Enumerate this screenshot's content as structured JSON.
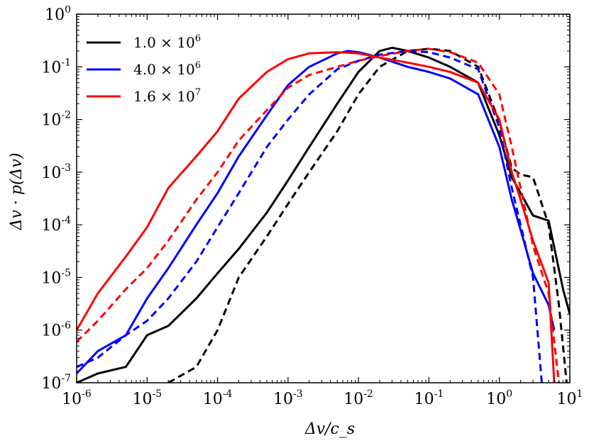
{
  "chart_data": {
    "type": "line",
    "title": "",
    "xlabel": "Δv/c_s",
    "ylabel": "Δv · p(Δv)",
    "xscale": "log",
    "yscale": "log",
    "xlim": [
      1e-06,
      10
    ],
    "ylim": [
      1e-07,
      1
    ],
    "x_ticks": [
      {
        "base": "10",
        "exp": "-6"
      },
      {
        "base": "10",
        "exp": "-5"
      },
      {
        "base": "10",
        "exp": "-4"
      },
      {
        "base": "10",
        "exp": "-3"
      },
      {
        "base": "10",
        "exp": "-2"
      },
      {
        "base": "10",
        "exp": "-1"
      },
      {
        "base": "10",
        "exp": "0"
      },
      {
        "base": "10",
        "exp": "1"
      }
    ],
    "y_ticks": [
      {
        "base": "10",
        "exp": "-7"
      },
      {
        "base": "10",
        "exp": "-6"
      },
      {
        "base": "10",
        "exp": "-5"
      },
      {
        "base": "10",
        "exp": "-4"
      },
      {
        "base": "10",
        "exp": "-3"
      },
      {
        "base": "10",
        "exp": "-2"
      },
      {
        "base": "10",
        "exp": "-1"
      },
      {
        "base": "10",
        "exp": "0"
      }
    ],
    "legend_position": "top-left",
    "grid": false,
    "legend": [
      {
        "mantissa": "1.0 ×",
        "base": "10",
        "exp": "6",
        "color": "#000000"
      },
      {
        "mantissa": "4.0 ×",
        "base": "10",
        "exp": "6",
        "color": "#0000ff"
      },
      {
        "mantissa": "1.6 ×",
        "base": "10",
        "exp": "7",
        "color": "#ff0000"
      }
    ],
    "series": [
      {
        "name": "1.0 × 10^6",
        "color": "#000000",
        "style": "solid",
        "x": [
          1e-06,
          2e-06,
          5e-06,
          1e-05,
          2e-05,
          5e-05,
          0.0001,
          0.0002,
          0.0005,
          0.001,
          0.002,
          0.005,
          0.01,
          0.02,
          0.03,
          0.05,
          0.1,
          0.2,
          0.5,
          1.0,
          1.5,
          2.0,
          3.0,
          5.0,
          8.0,
          10.0
        ],
        "y": [
          1e-07,
          1.5e-07,
          2e-07,
          8e-07,
          1.2e-06,
          4e-06,
          1.2e-05,
          3.5e-05,
          0.00017,
          0.0007,
          0.003,
          0.02,
          0.08,
          0.2,
          0.23,
          0.2,
          0.15,
          0.1,
          0.05,
          0.005,
          0.0008,
          0.0004,
          0.00015,
          0.00012,
          6e-06,
          2e-06
        ]
      },
      {
        "name": "",
        "color": "#000000",
        "style": "dashed",
        "x": [
          2e-05,
          5e-05,
          0.0001,
          0.0002,
          0.0005,
          0.001,
          0.002,
          0.005,
          0.01,
          0.02,
          0.05,
          0.1,
          0.2,
          0.5,
          1.0,
          1.5,
          2.0,
          3.0,
          5.0,
          7.0,
          9.0
        ],
        "y": [
          1e-07,
          2e-07,
          1e-06,
          1e-05,
          6e-05,
          0.00025,
          0.001,
          0.006,
          0.03,
          0.1,
          0.2,
          0.22,
          0.2,
          0.1,
          0.009,
          0.0012,
          0.0009,
          0.0008,
          0.0001,
          3e-06,
          1e-07
        ]
      },
      {
        "name": "4.0 × 10^6",
        "color": "#0000ff",
        "style": "solid",
        "x": [
          1e-06,
          2e-06,
          5e-06,
          1e-05,
          2e-05,
          5e-05,
          0.0001,
          0.0002,
          0.0005,
          0.001,
          0.002,
          0.005,
          0.007,
          0.01,
          0.02,
          0.05,
          0.1,
          0.2,
          0.5,
          1.0,
          1.5,
          2.0,
          3.0,
          5.0,
          6.0
        ],
        "y": [
          1.5e-07,
          4e-07,
          8e-07,
          4e-06,
          1.5e-05,
          0.0001,
          0.0004,
          0.002,
          0.012,
          0.045,
          0.1,
          0.18,
          0.2,
          0.19,
          0.15,
          0.1,
          0.08,
          0.06,
          0.03,
          0.003,
          0.0003,
          8e-05,
          1.2e-05,
          3e-06,
          1e-06
        ]
      },
      {
        "name": "",
        "color": "#0000ff",
        "style": "dashed",
        "x": [
          1e-06,
          2e-06,
          5e-06,
          1e-05,
          2e-05,
          5e-05,
          0.0001,
          0.0002,
          0.0005,
          0.001,
          0.002,
          0.005,
          0.01,
          0.02,
          0.05,
          0.1,
          0.2,
          0.5,
          1.0,
          1.5,
          2.0,
          3.0,
          4.0
        ],
        "y": [
          2e-07,
          3e-07,
          8e-07,
          1.5e-06,
          4e-06,
          2e-05,
          9e-05,
          0.0004,
          0.003,
          0.01,
          0.03,
          0.09,
          0.13,
          0.17,
          0.2,
          0.19,
          0.15,
          0.09,
          0.007,
          0.0005,
          0.0001,
          1e-05,
          1e-07
        ]
      },
      {
        "name": "1.6 × 10^7",
        "color": "#ff0000",
        "style": "solid",
        "x": [
          1e-06,
          2e-06,
          5e-06,
          1e-05,
          2e-05,
          5e-05,
          0.0001,
          0.0002,
          0.0005,
          0.001,
          0.002,
          0.005,
          0.01,
          0.02,
          0.05,
          0.1,
          0.2,
          0.5,
          1.0,
          1.5,
          2.0,
          3.0,
          5.0,
          6.0
        ],
        "y": [
          1e-06,
          5e-06,
          2.5e-05,
          9e-05,
          0.0005,
          0.002,
          0.006,
          0.025,
          0.08,
          0.14,
          0.18,
          0.19,
          0.18,
          0.15,
          0.12,
          0.1,
          0.08,
          0.05,
          0.01,
          0.001,
          0.0003,
          5e-05,
          8e-06,
          1e-07
        ]
      },
      {
        "name": "",
        "color": "#ff0000",
        "style": "dashed",
        "x": [
          1e-06,
          2e-06,
          5e-06,
          1e-05,
          2e-05,
          5e-05,
          0.0001,
          0.0002,
          0.0005,
          0.001,
          0.002,
          0.005,
          0.01,
          0.02,
          0.05,
          0.1,
          0.2,
          0.5,
          1.0,
          1.5,
          2.0,
          3.0,
          5.0,
          7.0
        ],
        "y": [
          6e-07,
          1.5e-06,
          6e-06,
          1.5e-05,
          5e-05,
          0.0003,
          0.001,
          0.004,
          0.015,
          0.04,
          0.07,
          0.1,
          0.13,
          0.16,
          0.2,
          0.22,
          0.19,
          0.12,
          0.03,
          0.003,
          0.0005,
          4e-05,
          5e-06,
          1e-07
        ]
      }
    ]
  }
}
